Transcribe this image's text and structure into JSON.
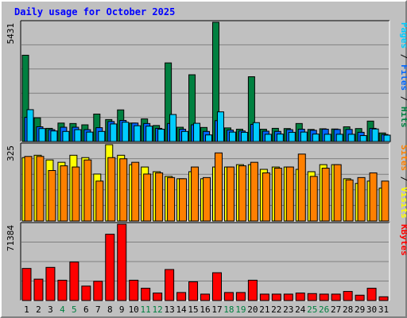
{
  "chart_data": {
    "title": "Daily usage for October 2025",
    "type": "bar",
    "days": [
      "1",
      "2",
      "3",
      "4",
      "5",
      "6",
      "7",
      "8",
      "9",
      "10",
      "11",
      "12",
      "13",
      "14",
      "15",
      "16",
      "17",
      "18",
      "19",
      "20",
      "21",
      "22",
      "23",
      "24",
      "25",
      "26",
      "27",
      "28",
      "29",
      "30",
      "31"
    ],
    "weekend_days": [
      "4",
      "5",
      "11",
      "12",
      "18",
      "19",
      "25",
      "26"
    ],
    "panels": [
      {
        "id": "hits",
        "max_label": "5431",
        "ylim": [
          0,
          5431
        ],
        "legend": [
          {
            "text": "Pages",
            "color": "#00ccff"
          },
          {
            "text": " / ",
            "color": "#000000"
          },
          {
            "text": "Files",
            "color": "#0066ff"
          },
          {
            "text": " / ",
            "color": "#000000"
          },
          {
            "text": "Hits",
            "color": "#008040"
          }
        ],
        "series": [
          {
            "name": "Hits",
            "color": "#008040",
            "values": [
              3930,
              1080,
              600,
              840,
              820,
              760,
              1250,
              1000,
              1440,
              840,
              1030,
              730,
              3580,
              650,
              3040,
              640,
              5431,
              620,
              560,
              2950,
              560,
              600,
              590,
              820,
              550,
              580,
              570,
              670,
              590,
              930,
              390
            ]
          },
          {
            "name": "Files",
            "color": "#0066ff",
            "values": [
              1100,
              670,
              540,
              650,
              650,
              540,
              630,
              910,
              960,
              840,
              820,
              600,
              820,
              560,
              760,
              460,
              950,
              520,
              480,
              780,
              470,
              460,
              540,
              560,
              510,
              560,
              550,
              550,
              420,
              600,
              320
            ]
          },
          {
            "name": "Pages",
            "color": "#00ccff",
            "values": [
              1450,
              590,
              480,
              460,
              540,
              430,
              460,
              800,
              880,
              720,
              700,
              560,
              1230,
              460,
              830,
              300,
              1350,
              430,
              420,
              860,
              330,
              340,
              420,
              430,
              340,
              330,
              330,
              330,
              270,
              570,
              290
            ]
          }
        ]
      },
      {
        "id": "visits",
        "max_label": "325",
        "ylim": [
          0,
          325
        ],
        "legend": [
          {
            "text": "Sites",
            "color": "#ff8000"
          },
          {
            "text": " / ",
            "color": "#000000"
          },
          {
            "text": "Visits",
            "color": "#ffff00"
          }
        ],
        "series": [
          {
            "name": "Visits",
            "color": "#ffff00",
            "values": [
              270,
              280,
              260,
              250,
              280,
              270,
              200,
              325,
              280,
              240,
              230,
              210,
              190,
              180,
              210,
              180,
              230,
              230,
              240,
              240,
              220,
              230,
              230,
              220,
              210,
              240,
              240,
              180,
              160,
              170,
              140
            ]
          },
          {
            "name": "Sites",
            "color": "#ff8000",
            "values": [
              275,
              275,
              215,
              235,
              230,
              260,
              170,
              270,
              265,
              250,
              200,
              205,
              185,
              180,
              230,
              185,
              290,
              230,
              235,
              250,
              205,
              225,
              230,
              285,
              190,
              225,
              240,
              175,
              185,
              205,
              170
            ]
          }
        ]
      },
      {
        "id": "kbytes",
        "max_label": "71384",
        "ylim": [
          0,
          71384
        ],
        "legend": [
          {
            "text": "KBytes",
            "color": "#ff0000"
          }
        ],
        "series": [
          {
            "name": "KBytes",
            "color": "#ff0000",
            "values": [
              30000,
              20000,
              31000,
              19000,
              36000,
              13500,
              18000,
              62000,
              71384,
              19000,
              11500,
              7000,
              29000,
              7500,
              17500,
              6000,
              26000,
              7500,
              7500,
              19000,
              6000,
              6000,
              6000,
              7000,
              6500,
              6000,
              6000,
              8500,
              5000,
              11500,
              3500
            ]
          }
        ]
      }
    ]
  }
}
